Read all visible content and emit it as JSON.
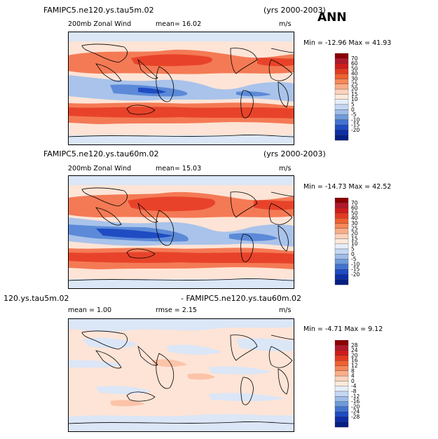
{
  "season": "ANN",
  "panels": [
    {
      "case_label": "FAMIPC5.ne120.ys.tau5m.02",
      "years": "(yrs 2000-2003)",
      "field_label": "200mb Zonal Wind",
      "stat_label": "mean=  16.02",
      "units": "m/s",
      "minmax": "Min = -12.96  Max =  41.93",
      "colorbar_levels": [
        "70",
        "60",
        "50",
        "40",
        "30",
        "25",
        "20",
        "15",
        "10",
        "5",
        "0",
        "-5",
        "-10",
        "-15",
        "-20"
      ],
      "colorbar_colors": [
        "#8b0000",
        "#b2182b",
        "#d01c1c",
        "#e33a22",
        "#f0602f",
        "#f6885a",
        "#f9ad8a",
        "#fcd2bc",
        "#fdeadc",
        "#e6eefa",
        "#c5d7f2",
        "#9fbde8",
        "#6f9bdc",
        "#4373d0",
        "#1f4cc2",
        "#0d2ea6",
        "#061f82"
      ]
    },
    {
      "case_label": "FAMIPC5.ne120.ys.tau60m.02",
      "years": "(yrs 2000-2003)",
      "field_label": "200mb Zonal Wind",
      "stat_label": "mean=  15.03",
      "units": "m/s",
      "minmax": "Min = -14.73  Max =  42.52",
      "colorbar_levels": [
        "70",
        "60",
        "50",
        "40",
        "30",
        "25",
        "20",
        "15",
        "10",
        "5",
        "0",
        "-5",
        "-10",
        "-15",
        "-20"
      ],
      "colorbar_colors": [
        "#8b0000",
        "#b2182b",
        "#d01c1c",
        "#e33a22",
        "#f0602f",
        "#f6885a",
        "#f9ad8a",
        "#fcd2bc",
        "#fdeadc",
        "#e6eefa",
        "#c5d7f2",
        "#9fbde8",
        "#6f9bdc",
        "#4373d0",
        "#1f4cc2",
        "#0d2ea6",
        "#061f82"
      ]
    },
    {
      "case_label": "120.ys.tau5m.02",
      "diff_label": "- FAMIPC5.ne120.ys.tau60m.02",
      "stat_label": "mean =   1.00",
      "rmse_label": "rmse =   2.15",
      "units": "m/s",
      "minmax": "Min =  -4.71  Max =   9.12",
      "colorbar_levels": [
        "28",
        "24",
        "20",
        "16",
        "12",
        "8",
        "4",
        "0",
        "-4",
        "-8",
        "-12",
        "-16",
        "-20",
        "-24",
        "-28"
      ],
      "colorbar_colors": [
        "#8b0000",
        "#b2182b",
        "#d01c1c",
        "#e33a22",
        "#f0602f",
        "#f6885a",
        "#f9ad8a",
        "#fcd2bc",
        "#fdeadc",
        "#e6eefa",
        "#c5d7f2",
        "#9fbde8",
        "#6f9bdc",
        "#4373d0",
        "#1f4cc2",
        "#0d2ea6",
        "#061f82"
      ]
    }
  ],
  "palette": {
    "strong_red": "#e8432a",
    "med_red": "#f47a55",
    "light_red": "#fbc3a8",
    "pale": "#fde4d6",
    "pale_blue": "#dbe6f7",
    "light_blue": "#a9c3ea",
    "med_blue": "#5c8ad8",
    "strong_blue": "#1f4cc2"
  }
}
